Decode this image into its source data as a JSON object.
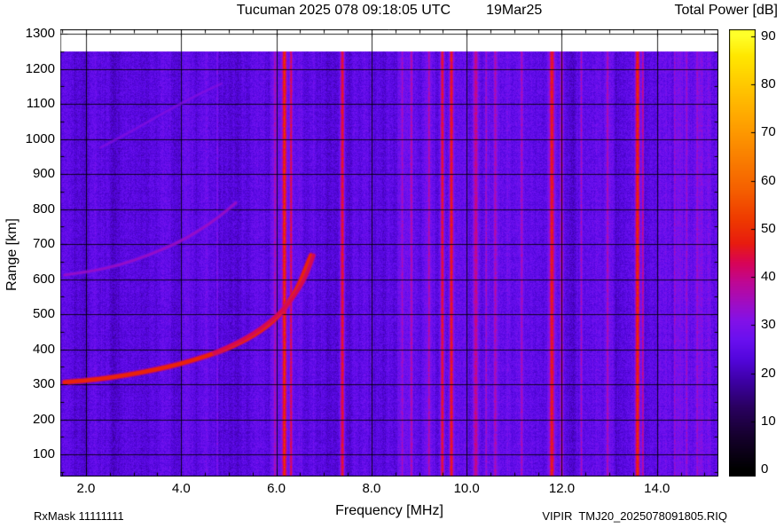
{
  "header": {
    "title": "Tucuman 2025 078 09:18:05 UTC",
    "date": "19Mar25",
    "colorbar_title": "Total Power [dB]"
  },
  "footer": {
    "left": "RxMask 11111111",
    "right": "VIPIR  TMJ20_2025078091805.RIQ"
  },
  "chart_data": {
    "type": "heatmap",
    "title": "Tucuman 2025 078 09:18:05 UTC 19Mar25",
    "xlabel": "Frequency [MHz]",
    "ylabel": "Range [km]",
    "colorbar_label": "Total Power [dB]",
    "xlim": [
      1.46,
      15.29
    ],
    "ylim": [
      37,
      1313
    ],
    "data_top_km": 1250,
    "grid": true,
    "x_ticks": [
      2,
      4,
      6,
      8,
      10,
      12,
      14
    ],
    "x_tick_labels": [
      "2.0",
      "4.0",
      "6.0",
      "8.0",
      "10.0",
      "12.0",
      "14.0"
    ],
    "x_minor_step": 0.5,
    "y_ticks": [
      100,
      200,
      300,
      400,
      500,
      600,
      700,
      800,
      900,
      1000,
      1100,
      1200,
      1300
    ],
    "y_tick_labels": [
      "100",
      "200",
      "300",
      "400",
      "500",
      "600",
      "700",
      "800",
      "900",
      "1000",
      "1100",
      "1200",
      "1300"
    ],
    "y_minor_step": 50,
    "colorbar_range": [
      0,
      90
    ],
    "colorbar_ticks": [
      0,
      10,
      20,
      30,
      40,
      50,
      60,
      70,
      80,
      90
    ],
    "colorbar_tick_labels": [
      "0",
      "10",
      "20",
      "30",
      "40",
      "50",
      "60",
      "70",
      "80",
      "90"
    ],
    "background_power_db": 24,
    "noise_amplitude_db": 3,
    "stripe_boost_from_mhz": 14.05,
    "stripe_boost_factor": 1.8,
    "colormap": [
      [
        0,
        "#000000"
      ],
      [
        7,
        "#16002e"
      ],
      [
        13,
        "#2a0060"
      ],
      [
        18,
        "#3c00a0"
      ],
      [
        23,
        "#5306dd"
      ],
      [
        27,
        "#6a10f0"
      ],
      [
        31,
        "#8312e8"
      ],
      [
        35,
        "#a30dc0"
      ],
      [
        39,
        "#bf0894"
      ],
      [
        43,
        "#d90457"
      ],
      [
        47,
        "#e81c10"
      ],
      [
        52,
        "#ef3a00"
      ],
      [
        58,
        "#f55f00"
      ],
      [
        65,
        "#fa8000"
      ],
      [
        72,
        "#ffa200"
      ],
      [
        80,
        "#ffc900"
      ],
      [
        86,
        "#ffe800"
      ],
      [
        90,
        "#ffff29"
      ]
    ],
    "rfi_bands": [
      {
        "freq": 6.17,
        "width": 0.1,
        "power": 47
      },
      {
        "freq": 6.31,
        "width": 0.06,
        "power": 41
      },
      {
        "freq": 7.39,
        "width": 0.09,
        "power": 46
      },
      {
        "freq": 9.49,
        "width": 0.08,
        "power": 47
      },
      {
        "freq": 9.68,
        "width": 0.09,
        "power": 47
      },
      {
        "freq": 10.19,
        "width": 0.12,
        "power": 39
      },
      {
        "freq": 11.79,
        "width": 0.1,
        "power": 46
      },
      {
        "freq": 12.0,
        "width": 0.06,
        "power": 39
      },
      {
        "freq": 13.59,
        "width": 0.11,
        "power": 49
      },
      {
        "freq": 13.7,
        "width": 0.05,
        "power": 40
      },
      {
        "freq": 8.84,
        "width": 0.06,
        "power": 36
      },
      {
        "freq": 9.21,
        "width": 0.05,
        "power": 34
      },
      {
        "freq": 10.6,
        "width": 0.06,
        "power": 34
      },
      {
        "freq": 11.16,
        "width": 0.05,
        "power": 34
      },
      {
        "freq": 12.41,
        "width": 0.05,
        "power": 34
      },
      {
        "freq": 12.96,
        "width": 0.05,
        "power": 34
      },
      {
        "freq": 14.37,
        "width": 0.05,
        "power": 33
      },
      {
        "freq": 5.97,
        "width": 0.05,
        "power": 33
      },
      {
        "freq": 4.76,
        "width": 0.04,
        "power": 31
      },
      {
        "freq": 10.41,
        "width": 0.04,
        "power": 33
      },
      {
        "freq": 8.65,
        "width": 0.04,
        "power": 32
      },
      {
        "freq": 14.63,
        "width": 0.04,
        "power": 32
      },
      {
        "freq": 14.84,
        "width": 0.04,
        "power": 32
      }
    ],
    "broad_bands": [
      {
        "from": 8.55,
        "to": 9.35,
        "boost": 2.5
      },
      {
        "from": 10.35,
        "to": 11.3,
        "boost": 2.2
      },
      {
        "from": 12.3,
        "to": 13.1,
        "boost": 2.2
      },
      {
        "from": 14.05,
        "to": 15.29,
        "boost": 3.0
      },
      {
        "from": 4.05,
        "to": 4.55,
        "boost": 1.8
      },
      {
        "from": 5.85,
        "to": 6.55,
        "boost": 2.5
      },
      {
        "from": 9.4,
        "to": 10.3,
        "boost": 1.5
      },
      {
        "from": 11.7,
        "to": 12.1,
        "boost": 1.8
      },
      {
        "from": 1.46,
        "to": 1.75,
        "boost": 1.5
      }
    ],
    "traces": [
      {
        "name": "f-layer-o-mode-echo",
        "power": 48,
        "width": 4.5,
        "alpha": 1,
        "points": [
          [
            1.55,
            306
          ],
          [
            2.0,
            311
          ],
          [
            2.5,
            319
          ],
          [
            3.0,
            330
          ],
          [
            3.5,
            343
          ],
          [
            4.0,
            359
          ],
          [
            4.4,
            375
          ],
          [
            4.8,
            393
          ],
          [
            5.1,
            410
          ],
          [
            5.4,
            430
          ],
          [
            5.7,
            455
          ],
          [
            5.95,
            482
          ],
          [
            6.15,
            512
          ],
          [
            6.3,
            542
          ],
          [
            6.42,
            570
          ],
          [
            6.52,
            598
          ],
          [
            6.61,
            628
          ],
          [
            6.68,
            652
          ],
          [
            6.73,
            668
          ]
        ]
      },
      {
        "name": "f-layer-x-mode-echo",
        "power": 44,
        "width": 3,
        "alpha": 0.9,
        "points": [
          [
            4.7,
            390
          ],
          [
            5.1,
            414
          ],
          [
            5.5,
            444
          ],
          [
            5.85,
            478
          ],
          [
            6.15,
            514
          ],
          [
            6.4,
            554
          ],
          [
            6.58,
            595
          ],
          [
            6.7,
            632
          ],
          [
            6.79,
            668
          ]
        ]
      },
      {
        "name": "second-hop-echo",
        "power": 35,
        "width": 3,
        "alpha": 0.75,
        "points": [
          [
            1.55,
            612
          ],
          [
            2.1,
            622
          ],
          [
            2.7,
            640
          ],
          [
            3.3,
            668
          ],
          [
            3.9,
            702
          ],
          [
            4.4,
            740
          ],
          [
            4.8,
            778
          ],
          [
            5.15,
            818
          ]
        ]
      },
      {
        "name": "third-hop-echo",
        "power": 32,
        "width": 2.5,
        "alpha": 0.6,
        "points": [
          [
            2.3,
            975
          ],
          [
            3.0,
            1025
          ],
          [
            3.7,
            1080
          ],
          [
            4.4,
            1130
          ],
          [
            4.85,
            1158
          ]
        ]
      }
    ]
  }
}
